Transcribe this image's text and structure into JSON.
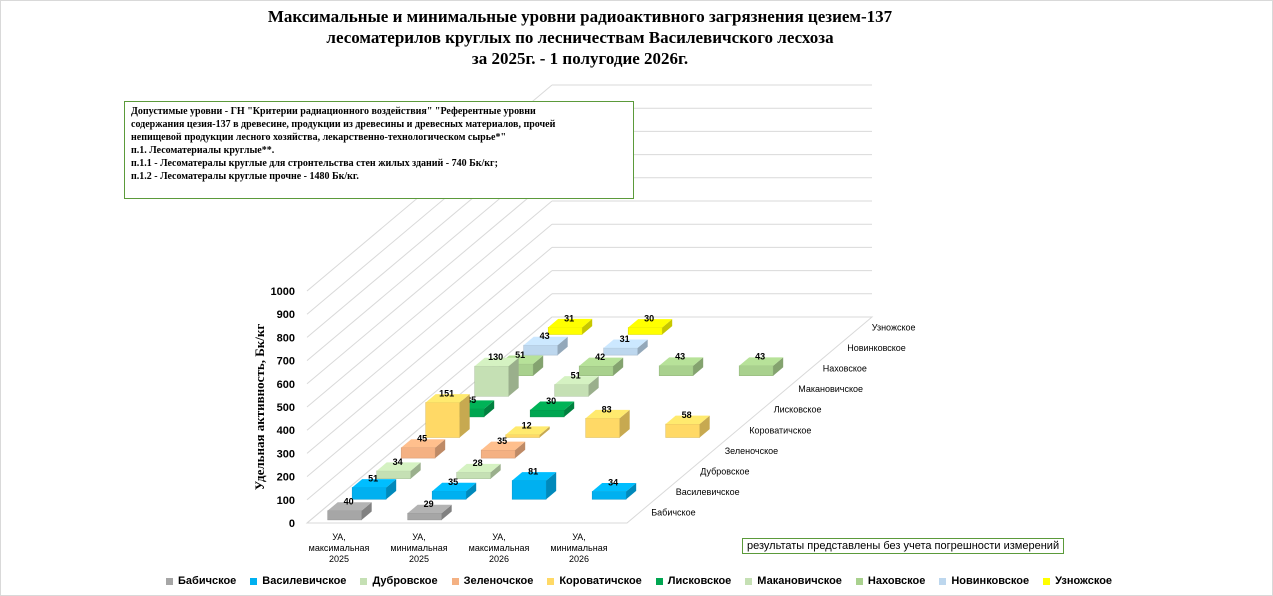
{
  "title": {
    "line1": "Максимальные и минимальные уровни радиоактивного загрязнения цезием-137",
    "line2": "лесоматерилов круглых по лесничествам Василевичского лесхоза",
    "line3": "за 2025г. - 1 полугодие 2026г."
  },
  "note": {
    "line1": "Допустимые уровни - ГН \"Критерии радиационного воздействия\" \"Референтные уровни",
    "line2": "содержания цезия-137 в древесине, продукции из древесины и древесных материалов, прочей",
    "line3": "непищевой продукции лесного хозяйства,  лекарственно-технологическом сырье*\"",
    "line4": "п.1. Лесоматериалы круглые**.",
    "line5": "п.1.1 - Лесоматералы круглые для стронтельства стен жилых зданий - 740 Бк/кг;",
    "line6": "п.1.2 - Лесоматералы круглые прочне - 1480 Бк/кг."
  },
  "disclaimer": "результаты представлены без учета погрешности измерений",
  "chart_data": {
    "type": "bar",
    "ylabel": "Удельная активность, Бк/кг",
    "ylim": [
      0,
      1000
    ],
    "yticks": [
      "0",
      "100",
      "200",
      "300",
      "400",
      "500",
      "600",
      "700",
      "800",
      "900",
      "1000"
    ],
    "categories": [
      [
        "УА,",
        "максимальная",
        "2025"
      ],
      [
        "УА,",
        "минимальная",
        "2025"
      ],
      [
        "УА,",
        "максимальная",
        "2026"
      ],
      [
        "УА,",
        "минимальная",
        "2026"
      ]
    ],
    "series": [
      {
        "name": "Бабичское",
        "color": "#a6a6a6",
        "values": [
          40,
          29,
          null,
          null
        ]
      },
      {
        "name": "Василевичское",
        "color": "#00b0f0",
        "values": [
          51,
          35,
          81,
          34
        ]
      },
      {
        "name": "Дубровское",
        "color": "#c5e0b4",
        "values": [
          34,
          28,
          null,
          null
        ]
      },
      {
        "name": "Зеленочское",
        "color": "#f4b183",
        "values": [
          45,
          35,
          null,
          null
        ]
      },
      {
        "name": "Коровагичское",
        "color": "#ffd966",
        "values": [
          151,
          12,
          83,
          58
        ]
      },
      {
        "name": "Лисковское",
        "color": "#00a651",
        "values": [
          35,
          30,
          null,
          null
        ]
      },
      {
        "name": "Макановичское",
        "color": "#c5e0b4",
        "values": [
          130,
          51,
          null,
          null
        ]
      },
      {
        "name": "Наховское",
        "color": "#a9d18e",
        "values": [
          51,
          42,
          43,
          43
        ]
      },
      {
        "name": "Новинковское",
        "color": "#bdd7ee",
        "values": [
          43,
          31,
          null,
          null
        ]
      },
      {
        "name": "Узножское",
        "color": "#ffff00",
        "values": [
          31,
          30,
          null,
          null
        ]
      }
    ],
    "depth_labels": [
      "Бабичское",
      "Василевичское",
      "Дубровское",
      "Зеленочское",
      "Коровагичское",
      "Лисковское",
      "Макановичское",
      "Наховское",
      "Новинковское",
      "Узножское"
    ],
    "depth_labels_shown": [
      "Бабичское",
      "Василевичское",
      "Дубровское",
      "Зеленочское",
      "Короватичское",
      "Лисковское",
      "Макановичское",
      "Наховское",
      "Новинковское",
      "Узножское"
    ],
    "legend": [
      "Бабичское",
      "Василевичское",
      "Дубровское",
      "Зеленочское",
      "Короватичское",
      "Лисковское",
      "Макановичское",
      "Наховское",
      "Новинковское",
      "Узножское"
    ],
    "legend_position": "bottom",
    "grid": true
  }
}
